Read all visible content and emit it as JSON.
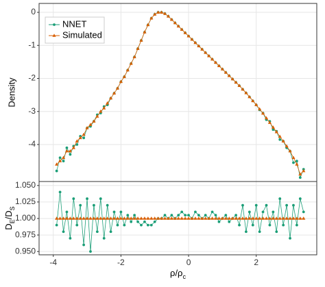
{
  "chart_data": [
    {
      "type": "line",
      "ylabel": "Density",
      "legend": "top-left",
      "grid": true,
      "x": [
        -3.9,
        -3.8,
        -3.7,
        -3.6,
        -3.5,
        -3.4,
        -3.3,
        -3.2,
        -3.1,
        -3.0,
        -2.9,
        -2.8,
        -2.7,
        -2.6,
        -2.5,
        -2.4,
        -2.3,
        -2.2,
        -2.1,
        -2.0,
        -1.9,
        -1.8,
        -1.7,
        -1.6,
        -1.5,
        -1.4,
        -1.3,
        -1.2,
        -1.1,
        -1.0,
        -0.9,
        -0.8,
        -0.7,
        -0.6,
        -0.5,
        -0.4,
        -0.3,
        -0.2,
        -0.1,
        0,
        0.1,
        0.2,
        0.3,
        0.4,
        0.5,
        0.6,
        0.7,
        0.8,
        0.9,
        1.0,
        1.1,
        1.2,
        1.3,
        1.4,
        1.5,
        1.6,
        1.7,
        1.8,
        1.9,
        2.0,
        2.1,
        2.2,
        2.3,
        2.4,
        2.5,
        2.6,
        2.7,
        2.8,
        2.9,
        3.0,
        3.1,
        3.2,
        3.3,
        3.4
      ],
      "xlim": [
        -4.42,
        3.79
      ],
      "xticks": [
        -4,
        -2,
        0,
        2
      ],
      "ylim": [
        -5.12,
        0.27
      ],
      "yticks": [
        0,
        -1,
        -2,
        -3,
        -4
      ],
      "series": [
        {
          "name": "NNET",
          "color": "#1b9e77",
          "marker": "circle",
          "values": [
            -4.8,
            -4.4,
            -4.5,
            -4.1,
            -4.3,
            -4.05,
            -4.0,
            -3.75,
            -3.8,
            -3.5,
            -3.45,
            -3.3,
            -3.1,
            -3.05,
            -2.85,
            -2.8,
            -2.6,
            -2.45,
            -2.3,
            -2.1,
            -1.95,
            -1.75,
            -1.55,
            -1.35,
            -1.1,
            -0.85,
            -0.6,
            -0.38,
            -0.18,
            -0.06,
            0,
            0,
            -0.04,
            -0.12,
            -0.22,
            -0.32,
            -0.42,
            -0.52,
            -0.62,
            -0.72,
            -0.82,
            -0.92,
            -1.02,
            -1.12,
            -1.22,
            -1.32,
            -1.42,
            -1.52,
            -1.62,
            -1.72,
            -1.82,
            -1.92,
            -2.02,
            -2.12,
            -2.22,
            -2.33,
            -2.44,
            -2.56,
            -2.68,
            -2.8,
            -2.95,
            -3.05,
            -3.25,
            -3.3,
            -3.55,
            -3.6,
            -3.85,
            -3.9,
            -4.1,
            -4.2,
            -4.55,
            -4.5,
            -5.0,
            -4.75
          ]
        },
        {
          "name": "Simulated",
          "color": "#d95f02",
          "marker": "triangle",
          "values": [
            -4.6,
            -4.5,
            -4.4,
            -4.2,
            -4.2,
            -4.1,
            -3.9,
            -3.8,
            -3.7,
            -3.5,
            -3.4,
            -3.3,
            -3.15,
            -3.0,
            -2.9,
            -2.75,
            -2.6,
            -2.45,
            -2.3,
            -2.1,
            -1.95,
            -1.75,
            -1.55,
            -1.35,
            -1.1,
            -0.85,
            -0.6,
            -0.38,
            -0.18,
            -0.06,
            0,
            0,
            -0.04,
            -0.12,
            -0.22,
            -0.32,
            -0.42,
            -0.52,
            -0.62,
            -0.72,
            -0.82,
            -0.92,
            -1.02,
            -1.12,
            -1.22,
            -1.32,
            -1.42,
            -1.52,
            -1.62,
            -1.72,
            -1.82,
            -1.92,
            -2.02,
            -2.12,
            -2.22,
            -2.33,
            -2.44,
            -2.56,
            -2.68,
            -2.8,
            -2.93,
            -3.06,
            -3.2,
            -3.34,
            -3.48,
            -3.62,
            -3.76,
            -3.9,
            -4.05,
            -4.2,
            -4.4,
            -4.6,
            -4.9,
            -4.8
          ]
        }
      ]
    },
    {
      "type": "line",
      "ylabel_parts": [
        {
          "text": "D",
          "sub": "E"
        },
        {
          "text": "/D",
          "sub": "S"
        }
      ],
      "xlabel_parts": [
        {
          "text": "ρ/ρ",
          "sub": "c"
        }
      ],
      "grid": true,
      "x": [
        -3.9,
        -3.8,
        -3.7,
        -3.6,
        -3.5,
        -3.4,
        -3.3,
        -3.2,
        -3.1,
        -3.0,
        -2.9,
        -2.8,
        -2.7,
        -2.6,
        -2.5,
        -2.4,
        -2.3,
        -2.2,
        -2.1,
        -2.0,
        -1.9,
        -1.8,
        -1.7,
        -1.6,
        -1.5,
        -1.4,
        -1.3,
        -1.2,
        -1.1,
        -1.0,
        -0.9,
        -0.8,
        -0.7,
        -0.6,
        -0.5,
        -0.4,
        -0.3,
        -0.2,
        -0.1,
        0,
        0.1,
        0.2,
        0.3,
        0.4,
        0.5,
        0.6,
        0.7,
        0.8,
        0.9,
        1.0,
        1.1,
        1.2,
        1.3,
        1.4,
        1.5,
        1.6,
        1.7,
        1.8,
        1.9,
        2.0,
        2.1,
        2.2,
        2.3,
        2.4,
        2.5,
        2.6,
        2.7,
        2.8,
        2.9,
        3.0,
        3.1,
        3.2,
        3.3,
        3.4
      ],
      "xlim": [
        -4.42,
        3.79
      ],
      "xticks": [
        -4,
        -2,
        0,
        2
      ],
      "ylim": [
        0.945,
        1.056
      ],
      "yticks": [
        {
          "value": 0.95,
          "label": "0.950"
        },
        {
          "value": 0.975,
          "label": "0.975"
        },
        {
          "value": 1.0,
          "label": "1.000"
        },
        {
          "value": 1.025,
          "label": "1.025"
        },
        {
          "value": 1.05,
          "label": "1.050"
        }
      ],
      "series": [
        {
          "name": "NNET",
          "color": "#1b9e77",
          "marker": "circle",
          "values": [
            0.99,
            1.04,
            0.98,
            1.01,
            0.97,
            1.03,
            0.99,
            1.02,
            0.96,
            1.03,
            0.95,
            1.02,
            0.98,
            1.03,
            0.97,
            1.02,
            0.98,
            1.01,
            0.99,
            1.01,
            0.99,
            1.005,
            0.995,
            1.005,
            0.995,
            0.99,
            0.995,
            0.99,
            0.99,
            0.995,
            1.0,
            1.0,
            1.005,
            1.0,
            1.005,
            1.0,
            1.005,
            1.01,
            1.005,
            1.005,
            1.0,
            1.01,
            1.005,
            1.0,
            1.005,
            1.0,
            1.01,
            1.005,
            0.995,
            1.0,
            1.005,
            0.995,
            1.0,
            1.005,
            0.99,
            1.02,
            0.98,
            1.01,
            0.99,
            1.02,
            0.98,
            1.01,
            1.02,
            0.99,
            1.01,
            0.98,
            1.03,
            0.99,
            1.02,
            0.97,
            1.02,
            0.99,
            1.03,
            1.01
          ]
        },
        {
          "name": "Simulated",
          "color": "#d95f02",
          "marker": "triangle",
          "values": [
            1,
            1,
            1,
            1,
            1,
            1,
            1,
            1,
            1,
            1,
            1,
            1,
            1,
            1,
            1,
            1,
            1,
            1,
            1,
            1,
            1,
            1,
            1,
            1,
            1,
            1,
            1,
            1,
            1,
            1,
            1,
            1,
            1,
            1,
            1,
            1,
            1,
            1,
            1,
            1,
            1,
            1,
            1,
            1,
            1,
            1,
            1,
            1,
            1,
            1,
            1,
            1,
            1,
            1,
            1,
            1,
            1,
            1,
            1,
            1,
            1,
            1,
            1,
            1,
            1,
            1,
            1,
            1,
            1,
            1,
            1,
            1,
            1,
            1
          ]
        }
      ]
    }
  ]
}
